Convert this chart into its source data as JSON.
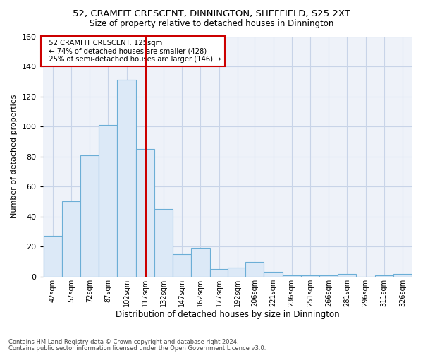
{
  "title1": "52, CRAMFIT CRESCENT, DINNINGTON, SHEFFIELD, S25 2XT",
  "title2": "Size of property relative to detached houses in Dinnington",
  "xlabel": "Distribution of detached houses by size in Dinnington",
  "ylabel": "Number of detached properties",
  "footer1": "Contains HM Land Registry data © Crown copyright and database right 2024.",
  "footer2": "Contains public sector information licensed under the Open Government Licence v3.0.",
  "annotation_line1": "52 CRAMFIT CRESCENT: 125sqm",
  "annotation_line2": "← 74% of detached houses are smaller (428)",
  "annotation_line3": "25% of semi-detached houses are larger (146) →",
  "property_size": 125,
  "bar_color": "#dce9f7",
  "bar_edge_color": "#6baed6",
  "vline_color": "#cc0000",
  "annotation_box_color": "#cc0000",
  "grid_color": "#c8d4e8",
  "background_color": "#eef2f9",
  "bins": [
    42,
    57,
    72,
    87,
    102,
    117,
    132,
    147,
    162,
    177,
    192,
    206,
    221,
    236,
    251,
    266,
    281,
    296,
    311,
    326,
    341
  ],
  "counts": [
    27,
    50,
    81,
    101,
    131,
    85,
    45,
    15,
    19,
    5,
    6,
    10,
    3,
    1,
    1,
    1,
    2,
    0,
    1,
    2
  ],
  "ylim": [
    0,
    160
  ],
  "yticks": [
    0,
    20,
    40,
    60,
    80,
    100,
    120,
    140,
    160
  ]
}
